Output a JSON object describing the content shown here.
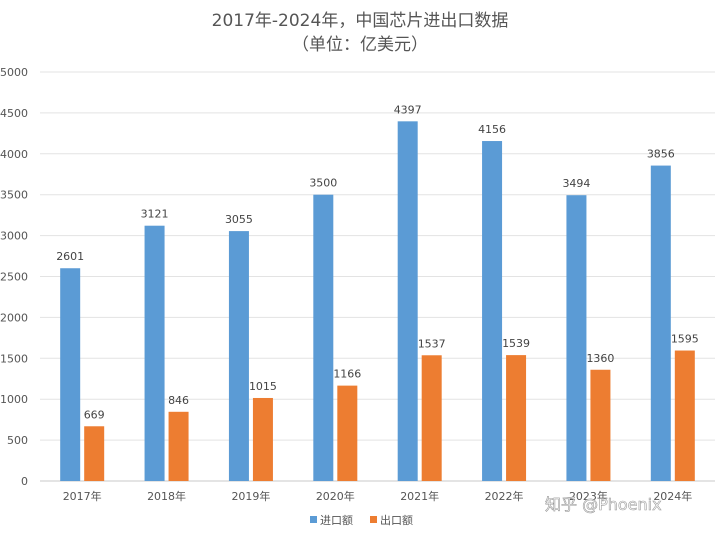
{
  "chart_data": {
    "type": "bar",
    "title": "2017年-2024年，中国芯片进出口数据",
    "subtitle": "（单位：亿美元）",
    "categories": [
      "2017年",
      "2018年",
      "2019年",
      "2020年",
      "2021年",
      "2022年",
      "2023年",
      "2024年"
    ],
    "series": [
      {
        "name": "进口额",
        "color": "#5b9bd5",
        "values": [
          2601,
          3121,
          3055,
          3500,
          4397,
          4156,
          3494,
          3856
        ]
      },
      {
        "name": "出口额",
        "color": "#ed7d31",
        "values": [
          669,
          846,
          1015,
          1166,
          1537,
          1539,
          1360,
          1595
        ]
      }
    ],
    "ylim": [
      0,
      5000
    ],
    "yticks": [
      0,
      500,
      1000,
      1500,
      2000,
      2500,
      3000,
      3500,
      4000,
      4500,
      5000
    ],
    "grid": true,
    "legend_position": "bottom-center"
  },
  "watermark": "知乎 @Phoenix"
}
